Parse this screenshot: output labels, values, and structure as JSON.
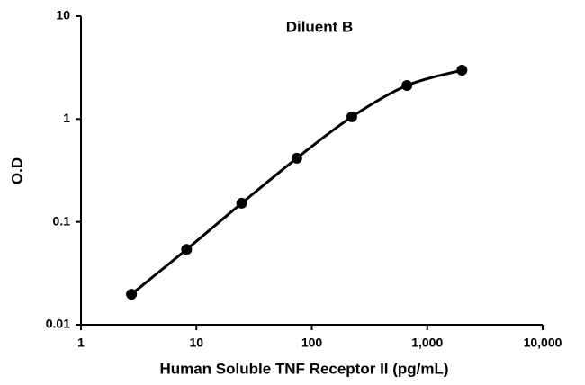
{
  "chart_data": {
    "type": "line",
    "title": "Diluent B",
    "x_label": "Human Soluble TNF Receptor II (pg/mL)",
    "y_label": "O.D",
    "x": [
      2.74,
      8.23,
      24.7,
      74.1,
      222,
      667,
      2000
    ],
    "values": [
      0.0198,
      0.054,
      0.152,
      0.416,
      1.05,
      2.12,
      2.99
    ],
    "color": "#000000",
    "x_scale": "log",
    "y_scale": "log",
    "xlim": [
      1,
      10000
    ],
    "ylim": [
      0.01,
      10
    ],
    "xticks": [
      1,
      10,
      100,
      {
        "value": 1000,
        "label": "1,000"
      },
      {
        "value": 10000,
        "label": "10,000"
      }
    ],
    "yticks": [
      0.01,
      0.1,
      1,
      10
    ],
    "smooth": true,
    "markers": true
  }
}
